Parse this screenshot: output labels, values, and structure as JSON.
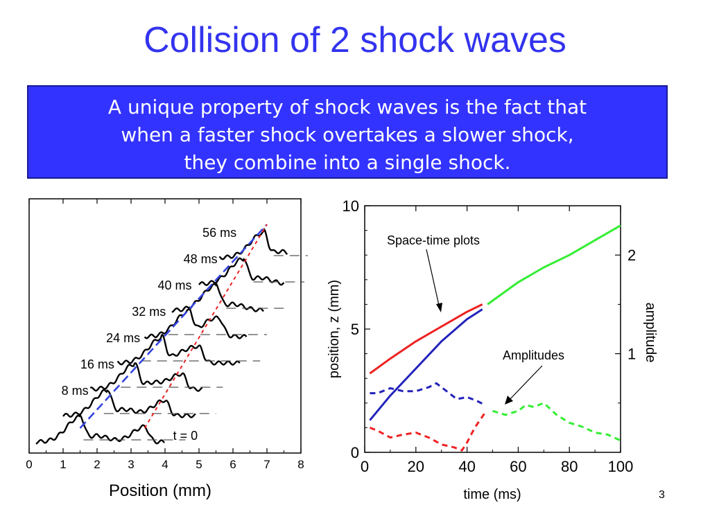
{
  "slide": {
    "title": "Collision of 2 shock waves",
    "callout_lines": [
      "A unique property of shock waves is the fact that",
      "when a faster shock overtakes a slower shock,",
      "they combine into a single shock."
    ],
    "page_number": "3"
  },
  "chart_data": [
    {
      "type": "line",
      "xlabel": "Position (mm)",
      "ylabel": "",
      "xlim": [
        0,
        8
      ],
      "x_ticks": [
        0,
        1,
        2,
        3,
        4,
        5,
        6,
        7,
        8
      ],
      "grid": false,
      "baseline_label": "t = 0",
      "waveforms": [
        {
          "label": "",
          "t_ms": 0,
          "fast_peak_mm": 1.5,
          "slow_peak_mm": 3.4,
          "end_mm": 4.0
        },
        {
          "label": "8 ms",
          "t_ms": 8,
          "fast_peak_mm": 2.3,
          "slow_peak_mm": 4.0,
          "end_mm": 4.9
        },
        {
          "label": "16 ms",
          "t_ms": 16,
          "fast_peak_mm": 3.1,
          "slow_peak_mm": 4.5,
          "end_mm": 5.1
        },
        {
          "label": "24 ms",
          "t_ms": 24,
          "fast_peak_mm": 3.9,
          "slow_peak_mm": 5.0,
          "end_mm": 6.2
        },
        {
          "label": "32 ms",
          "t_ms": 32,
          "fast_peak_mm": 4.7,
          "slow_peak_mm": 5.6,
          "end_mm": 6.4
        },
        {
          "label": "40 ms",
          "t_ms": 40,
          "fast_peak_mm": 5.5,
          "slow_peak_mm": null,
          "end_mm": 6.9
        },
        {
          "label": "48 ms",
          "t_ms": 48,
          "fast_peak_mm": 6.3,
          "slow_peak_mm": null,
          "end_mm": 7.5
        },
        {
          "label": "56 ms",
          "t_ms": 56,
          "fast_peak_mm": 6.9,
          "slow_peak_mm": null,
          "end_mm": 7.6
        }
      ],
      "trend_lines": [
        {
          "style": "dashed",
          "color": "#3344dd",
          "from": [
            1.5,
            0
          ],
          "to": [
            7.0,
            56
          ]
        },
        {
          "style": "dotted",
          "color": "#ee2222",
          "from": [
            3.4,
            0
          ],
          "to": [
            7.0,
            56
          ]
        }
      ]
    },
    {
      "type": "line",
      "xlabel": "time (ms)",
      "ylabel": "position, z (mm)",
      "y2label": "amplitude",
      "xlim": [
        0,
        100
      ],
      "ylim": [
        0,
        10
      ],
      "y2lim": [
        0,
        2.5
      ],
      "x_ticks": [
        0,
        20,
        40,
        60,
        80,
        100
      ],
      "y_ticks": [
        0,
        5,
        10
      ],
      "y2_ticks": [
        1,
        2
      ],
      "annotations": [
        "Space-time plots",
        "Amplitudes"
      ],
      "series": [
        {
          "axis": "left",
          "style": "solid",
          "color": "#ee2222",
          "x": [
            2,
            10,
            20,
            30,
            40,
            46
          ],
          "y": [
            3.2,
            3.8,
            4.5,
            5.1,
            5.7,
            6.0
          ]
        },
        {
          "axis": "left",
          "style": "solid",
          "color": "#2222bb",
          "x": [
            2,
            10,
            20,
            30,
            40,
            46
          ],
          "y": [
            1.3,
            2.3,
            3.4,
            4.5,
            5.4,
            5.8
          ]
        },
        {
          "axis": "left",
          "style": "solid",
          "color": "#33ee33",
          "x": [
            48,
            60,
            70,
            80,
            90,
            100
          ],
          "y": [
            6.0,
            6.9,
            7.5,
            8.0,
            8.6,
            9.2
          ]
        },
        {
          "axis": "right",
          "style": "dashed",
          "color": "#2222bb",
          "x": [
            2,
            5,
            10,
            15,
            20,
            25,
            28,
            32,
            36,
            40,
            44,
            47
          ],
          "y": [
            0.6,
            0.6,
            0.65,
            0.62,
            0.62,
            0.66,
            0.7,
            0.62,
            0.54,
            0.56,
            0.52,
            0.48
          ]
        },
        {
          "axis": "right",
          "style": "dashed",
          "color": "#ee2222",
          "x": [
            2,
            5,
            10,
            15,
            20,
            25,
            30,
            35,
            38,
            40,
            43,
            47
          ],
          "y": [
            0.25,
            0.22,
            0.15,
            0.18,
            0.2,
            0.15,
            0.08,
            0.05,
            0.02,
            0.1,
            0.25,
            0.4
          ]
        },
        {
          "axis": "right",
          "style": "dashed",
          "color": "#33ee33",
          "x": [
            50,
            55,
            60,
            63,
            66,
            70,
            75,
            80,
            85,
            90,
            95,
            100
          ],
          "y": [
            0.42,
            0.38,
            0.42,
            0.48,
            0.46,
            0.5,
            0.38,
            0.3,
            0.26,
            0.2,
            0.18,
            0.12
          ]
        }
      ]
    }
  ]
}
